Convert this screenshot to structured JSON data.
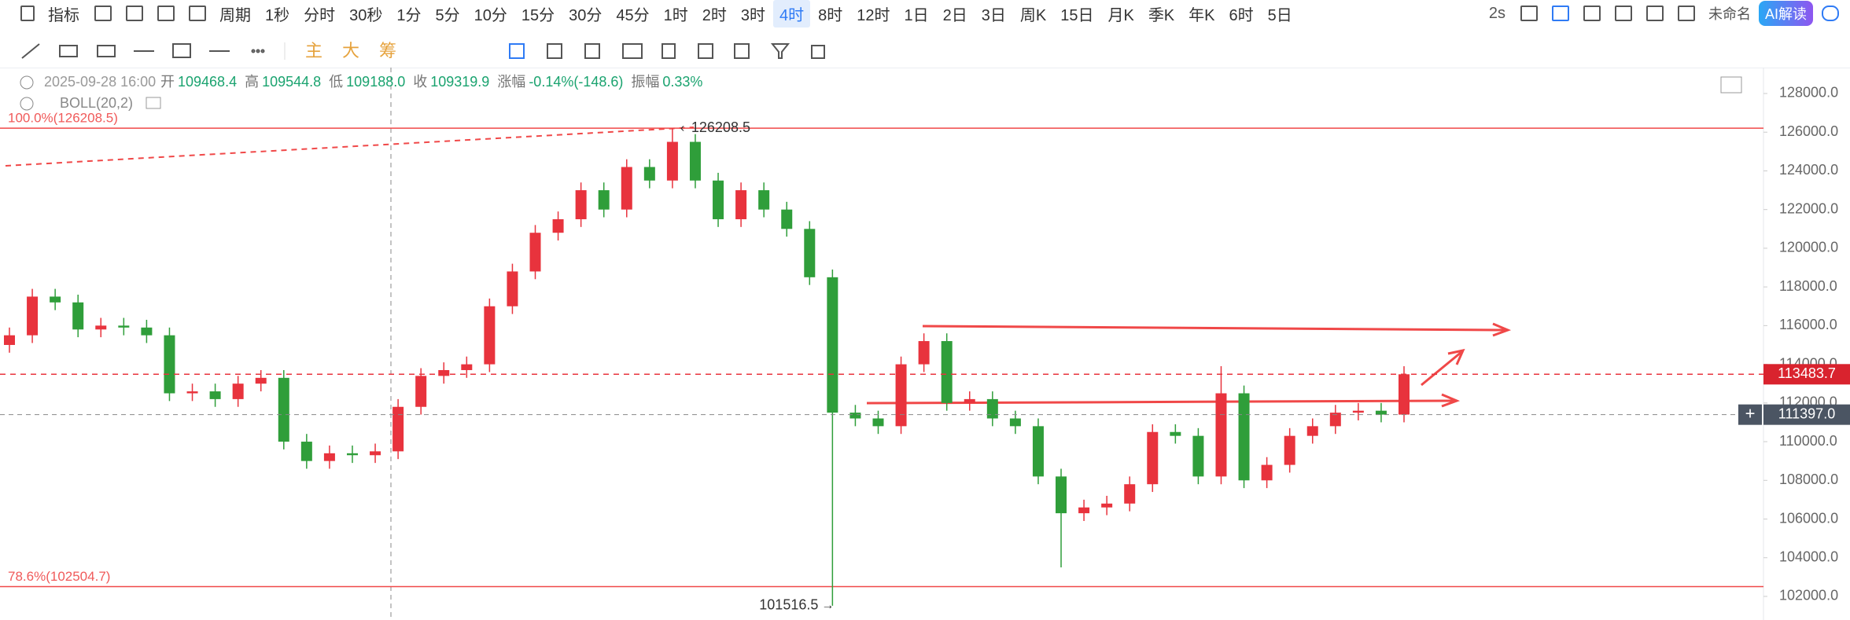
{
  "toolbar": {
    "indicator": "指标",
    "period": "周期",
    "periods": [
      "1秒",
      "分时",
      "30秒",
      "1分",
      "5分",
      "10分",
      "15分",
      "30分",
      "45分",
      "1时",
      "2时",
      "3时",
      "4时",
      "8时",
      "12时",
      "1日",
      "2日",
      "3日",
      "周K",
      "15日",
      "月K",
      "季K",
      "年K",
      "6时",
      "5日"
    ],
    "selected_period": 12,
    "refresh": "2s",
    "layout_name": "未命名",
    "ai_button": "AI解读"
  },
  "draw_toolbar": {
    "chips": [
      "主",
      "大",
      "筹"
    ]
  },
  "info": {
    "datetime": "2025-09-28 16:00",
    "fields": [
      {
        "label": "开",
        "value": "109468.4"
      },
      {
        "label": "高",
        "value": "109544.8"
      },
      {
        "label": "低",
        "value": "109188.0"
      },
      {
        "label": "收",
        "value": "109319.9"
      },
      {
        "label": "涨幅",
        "value": "-0.14%(-148.6)"
      },
      {
        "label": "振幅",
        "value": "0.33%"
      }
    ],
    "indicator": "BOLL(20,2)"
  },
  "chart_data": {
    "type": "candlestick",
    "open": [
      115000,
      115500,
      117500,
      117200,
      115800,
      116000,
      115900,
      115500,
      112500,
      112600,
      112200,
      113000,
      113300,
      110000,
      109000,
      109400,
      109300,
      109500,
      111800,
      113400,
      113700,
      114000,
      117000,
      118800,
      120800,
      121500,
      123000,
      122000,
      124200,
      123500,
      125500,
      123500,
      121500,
      123000,
      122000,
      121000,
      118500,
      111500,
      111200,
      110800,
      114000,
      115200,
      112000,
      112200,
      111200,
      110800,
      108200,
      106300,
      106600,
      106800,
      107800,
      110500,
      110300,
      108200,
      112500,
      108000,
      108800,
      110300,
      110800,
      111500,
      111600,
      111400
    ],
    "high": [
      115900,
      117900,
      117900,
      117600,
      116400,
      116400,
      116300,
      115900,
      113000,
      113000,
      113400,
      113700,
      113700,
      110400,
      109800,
      109800,
      109900,
      112200,
      113800,
      114100,
      114400,
      117400,
      119200,
      121200,
      121900,
      123400,
      123400,
      124600,
      124600,
      126208.5,
      125900,
      123900,
      123400,
      123400,
      122400,
      121400,
      118900,
      111900,
      111600,
      114400,
      115600,
      115600,
      112600,
      112600,
      111600,
      111200,
      108600,
      107000,
      107200,
      108200,
      110900,
      110900,
      110700,
      113900,
      112900,
      109200,
      110700,
      111200,
      111900,
      112000,
      112000,
      113900
    ],
    "low": [
      114600,
      115100,
      116800,
      115400,
      115400,
      115500,
      115100,
      112100,
      112100,
      111800,
      111800,
      112600,
      109600,
      108600,
      108600,
      108900,
      108900,
      109100,
      111400,
      113000,
      113300,
      113600,
      116600,
      118400,
      120400,
      121100,
      121600,
      121600,
      123100,
      123100,
      123100,
      121100,
      121100,
      121600,
      120600,
      118100,
      101516.5,
      110800,
      110400,
      110400,
      113600,
      111600,
      111600,
      110800,
      110400,
      107800,
      103500,
      105900,
      106200,
      106400,
      107400,
      109900,
      107800,
      107800,
      107600,
      107600,
      108400,
      109900,
      110400,
      111100,
      111000,
      111000
    ],
    "close": [
      115500,
      117500,
      117200,
      115800,
      116000,
      115900,
      115500,
      112500,
      112600,
      112200,
      113000,
      113300,
      110000,
      109000,
      109400,
      109300,
      109500,
      111800,
      113400,
      113700,
      114000,
      117000,
      118800,
      120800,
      121500,
      123000,
      122000,
      124200,
      123500,
      125500,
      123500,
      121500,
      123000,
      122000,
      121000,
      118500,
      111500,
      111200,
      110800,
      114000,
      115200,
      112000,
      112200,
      111200,
      110800,
      108200,
      106300,
      106600,
      106800,
      107800,
      110500,
      110300,
      108200,
      112500,
      108000,
      108800,
      110300,
      110800,
      111500,
      111600,
      111400,
      113483.7
    ],
    "up_color": "#e8333d",
    "down_color": "#2f9e3a",
    "ylim": [
      100780,
      129340
    ],
    "yticks": [
      {
        "value": 102000,
        "label": "102000.0"
      },
      {
        "value": 104000,
        "label": "104000.0"
      },
      {
        "value": 106000,
        "label": "106000.0"
      },
      {
        "value": 108000,
        "label": "108000.0"
      },
      {
        "value": 110000,
        "label": "110000.0"
      },
      {
        "value": 112000,
        "label": "112000.0"
      },
      {
        "value": 114000,
        "label": "114000.0"
      },
      {
        "value": 116000,
        "label": "116000.0"
      },
      {
        "value": 118000,
        "label": "118000.0"
      },
      {
        "value": 120000,
        "label": "120000.0"
      },
      {
        "value": 122000,
        "label": "122000.0"
      },
      {
        "value": 124000,
        "label": "124000.0"
      },
      {
        "value": 126000,
        "label": "126000.0"
      },
      {
        "value": 128000,
        "label": "128000.0"
      }
    ],
    "fib_levels": [
      {
        "value": 126208.5,
        "label": "100.0%(126208.5)"
      },
      {
        "value": 102504.7,
        "label": "78.6%(102504.7)"
      }
    ],
    "high_mark": 126208.5,
    "low_mark": 101516.5,
    "last_price": 113483.7,
    "crosshair_price": {
      "value": 111397,
      "label": "111397.0"
    }
  }
}
